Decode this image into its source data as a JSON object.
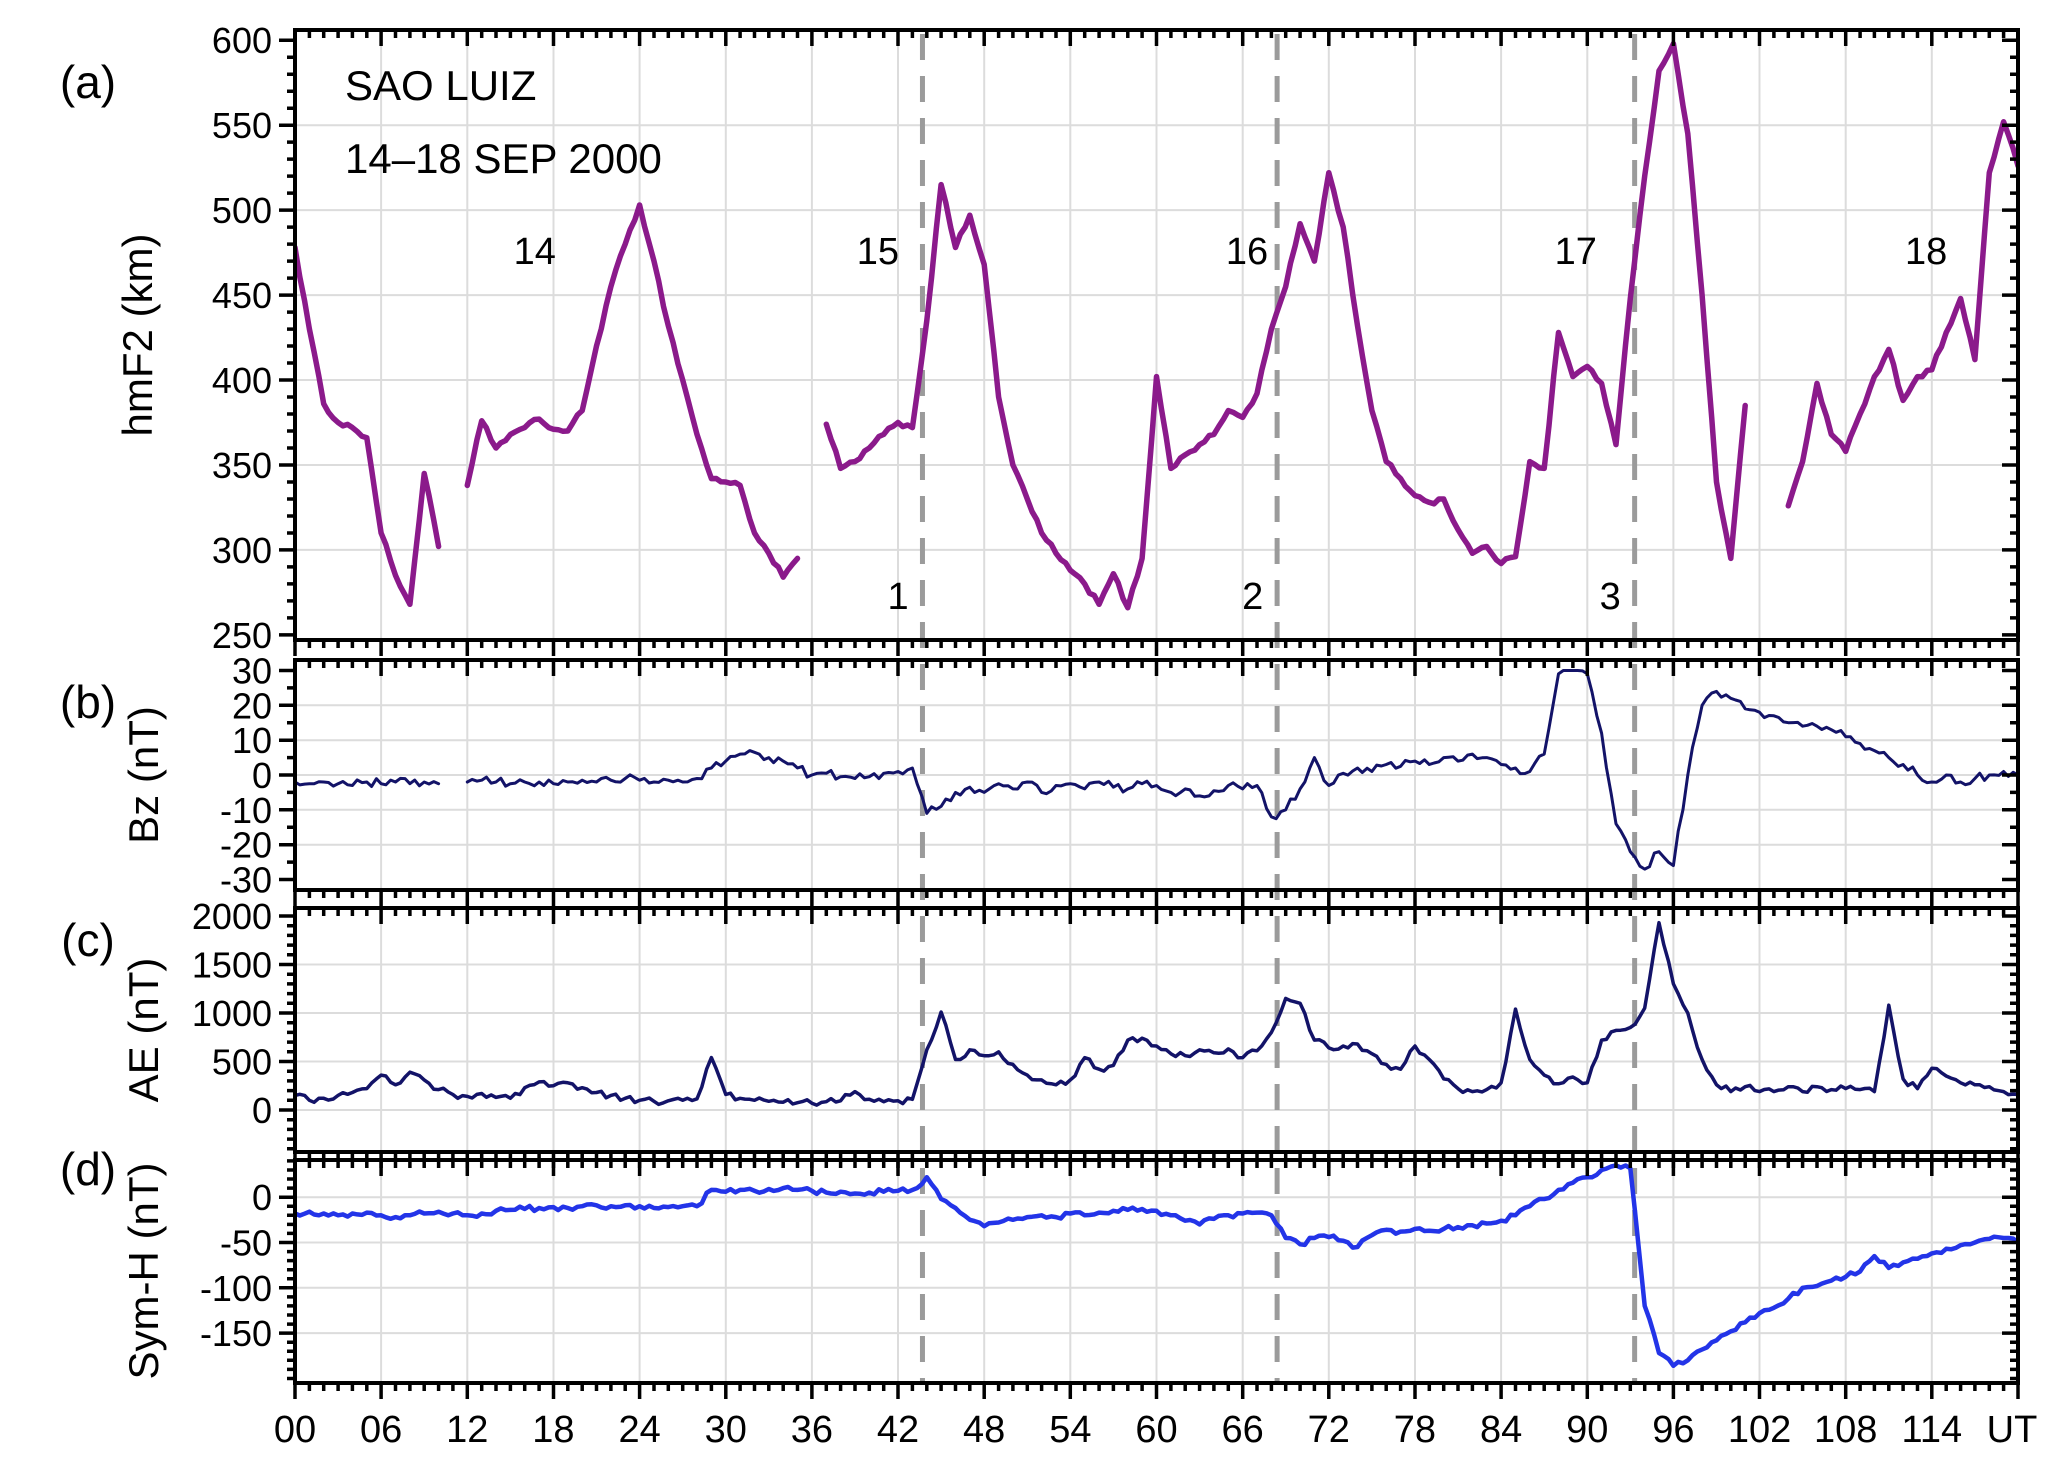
{
  "figure": {
    "header": {
      "station": "SAO LUIZ",
      "date_range": "14–18 SEP 2000"
    }
  },
  "x_axis": {
    "unit_label": "UT",
    "range": [
      0,
      120
    ],
    "major_step": 6,
    "minor_step": 1,
    "tick_labels": [
      "00",
      "06",
      "12",
      "18",
      "24",
      "30",
      "36",
      "42",
      "48",
      "54",
      "60",
      "66",
      "72",
      "78",
      "84",
      "90",
      "96",
      "102",
      "108",
      "114"
    ]
  },
  "annotations": {
    "event_lines": [
      {
        "label": "1",
        "hour": 43.7
      },
      {
        "label": "2",
        "hour": 68.4
      },
      {
        "label": "3",
        "hour": 93.3
      }
    ],
    "event_label_hours": [
      42.0,
      66.7,
      91.6
    ],
    "event_label_value": 273,
    "day_labels": [
      {
        "label": "14",
        "hour": 16.7
      },
      {
        "label": "15",
        "hour": 40.6
      },
      {
        "label": "16",
        "hour": 66.3
      },
      {
        "label": "17",
        "hour": 89.2
      },
      {
        "label": "18",
        "hour": 113.6
      }
    ],
    "day_label_value": 476
  },
  "chart_data": [
    {
      "panel": "a",
      "type": "line",
      "letter": "(a)",
      "ylabel": "hmF2 (km)",
      "color": "#8B1A8B",
      "line_width": 5.5,
      "noise": 1.5,
      "ylim": [
        247,
        606
      ],
      "yticks": [
        250,
        300,
        350,
        400,
        450,
        500,
        550,
        600
      ],
      "ytick_labels": [
        "250",
        "300",
        "350",
        "400",
        "450",
        "500",
        "550",
        "600"
      ],
      "y_minor_step": 10,
      "clip": [
        250,
        599.5
      ],
      "x_hours_step": 1,
      "values": [
        478,
        430,
        386,
        375,
        372,
        366,
        310,
        285,
        268,
        345,
        302,
        null,
        338,
        376,
        360,
        368,
        372,
        377,
        371,
        370,
        382,
        420,
        455,
        480,
        503,
        470,
        432,
        400,
        368,
        342,
        340,
        338,
        310,
        298,
        284,
        295,
        null,
        374,
        348,
        352,
        360,
        368,
        375,
        372,
        435,
        515,
        478,
        497,
        468,
        390,
        350,
        330,
        310,
        298,
        288,
        280,
        268,
        286,
        266,
        295,
        402,
        348,
        356,
        362,
        368,
        382,
        378,
        392,
        430,
        455,
        492,
        470,
        522,
        490,
        432,
        382,
        352,
        342,
        332,
        328,
        330,
        312,
        298,
        302,
        292,
        296,
        352,
        348,
        428,
        402,
        408,
        398,
        362,
        448,
        520,
        582,
        598,
        545,
        450,
        340,
        295,
        385,
        null,
        null,
        326,
        352,
        398,
        368,
        358,
        380,
        402,
        418,
        388,
        402,
        406,
        428,
        448,
        412,
        522,
        552,
        526
      ]
    },
    {
      "panel": "b",
      "type": "line",
      "letter": "(b)",
      "ylabel": "Bz (nT)",
      "color": "#131368",
      "line_width": 3,
      "noise": 1.3,
      "ylim": [
        -33,
        33
      ],
      "yticks": [
        -30,
        -20,
        -10,
        0,
        10,
        20,
        30
      ],
      "ytick_labels": [
        "-30",
        "-20",
        "-10",
        "0",
        "10",
        "20",
        "30"
      ],
      "y_minor_step": 5,
      "clip": [
        -29,
        30
      ],
      "x_hours_step": 1,
      "values": [
        -2,
        -2.5,
        -2,
        -2.5,
        -3,
        -2,
        -2.5,
        -2,
        -2.5,
        -2,
        -2.5,
        null,
        -2,
        -1.5,
        -2,
        -2.5,
        -2,
        -2,
        -2.5,
        -2,
        -1.5,
        -2,
        -1.5,
        -1,
        -1.5,
        -2,
        -1.5,
        -2,
        -1,
        2,
        4,
        6,
        6.5,
        5,
        4,
        2,
        0,
        0.5,
        -0.5,
        -1,
        -0.5,
        0.5,
        1,
        2,
        -11,
        -9,
        -5,
        -3.5,
        -5,
        -2.5,
        -4,
        -2,
        -5,
        -3,
        -2.5,
        -4,
        -2,
        -3.5,
        -4,
        -2.5,
        -3,
        -5,
        -4,
        -6,
        -4.5,
        -3,
        -4,
        -3,
        -12,
        -10,
        -4,
        5,
        -3,
        0.5,
        2,
        1,
        3,
        2.5,
        4,
        3,
        5,
        4,
        6,
        5,
        3,
        2,
        1,
        6,
        29,
        30,
        29,
        12,
        -14,
        -22,
        -27,
        -22,
        -26,
        0,
        20,
        24,
        22,
        19,
        18,
        17,
        15,
        14,
        14,
        13,
        11,
        9,
        7,
        5,
        3,
        0,
        -2,
        0,
        -2,
        -1,
        0,
        1,
        0
      ]
    },
    {
      "panel": "c",
      "type": "line",
      "letter": "(c)",
      "ylabel": "AE (nT)",
      "color": "#131368",
      "line_width": 3.5,
      "noise": 35,
      "ylim": [
        -433,
        2082
      ],
      "yticks": [
        0,
        500,
        1000,
        1500,
        2000
      ],
      "ytick_labels": [
        "0",
        "500",
        "1000",
        "1500",
        "2000"
      ],
      "y_minor_step": 100,
      "clip": [
        15,
        2050
      ],
      "x_hours_step": 1,
      "values": [
        150,
        100,
        120,
        150,
        180,
        220,
        360,
        260,
        390,
        310,
        210,
        160,
        140,
        170,
        130,
        120,
        230,
        290,
        250,
        280,
        230,
        180,
        150,
        120,
        100,
        90,
        95,
        100,
        115,
        540,
        160,
        120,
        100,
        90,
        80,
        75,
        70,
        85,
        95,
        190,
        110,
        85,
        95,
        110,
        620,
        1010,
        520,
        620,
        560,
        600,
        470,
        360,
        310,
        260,
        310,
        540,
        420,
        460,
        720,
        740,
        660,
        580,
        560,
        620,
        590,
        630,
        540,
        610,
        800,
        1150,
        1100,
        720,
        640,
        660,
        680,
        580,
        470,
        420,
        660,
        520,
        320,
        220,
        190,
        210,
        280,
        1040,
        520,
        360,
        270,
        340,
        280,
        720,
        820,
        850,
        1050,
        1930,
        1300,
        1000,
        520,
        260,
        190,
        240,
        190,
        190,
        240,
        190,
        240,
        210,
        220,
        210,
        190,
        1080,
        320,
        220,
        430,
        350,
        280,
        260,
        240,
        190,
        160
      ]
    },
    {
      "panel": "d",
      "type": "line",
      "letter": "(d)",
      "ylabel": "Sym-H (nT)",
      "color": "#2334E8",
      "line_width": 4.5,
      "noise": 3,
      "ylim": [
        -205,
        41
      ],
      "yticks": [
        -150,
        -100,
        -50,
        0
      ],
      "ytick_labels": [
        "-150",
        "-100",
        "-50",
        "0"
      ],
      "y_minor_step": 10,
      "clip": [
        -195,
        38
      ],
      "x_hours_step": 1,
      "values": [
        -18,
        -16,
        -18,
        -20,
        -18,
        -17,
        -20,
        -22,
        -20,
        -18,
        -16,
        -18,
        -20,
        -18,
        -15,
        -14,
        -13,
        -12,
        -11,
        -12,
        -10,
        -9,
        -10,
        -9,
        -10,
        -12,
        -11,
        -10,
        -10,
        8,
        6,
        8,
        7,
        9,
        10,
        8,
        7,
        5,
        6,
        4,
        5,
        6,
        7,
        8,
        22,
        -2,
        -12,
        -25,
        -32,
        -28,
        -25,
        -22,
        -20,
        -22,
        -18,
        -20,
        -17,
        -15,
        -14,
        -13,
        -15,
        -20,
        -26,
        -30,
        -24,
        -20,
        -18,
        -17,
        -20,
        -45,
        -52,
        -45,
        -44,
        -48,
        -55,
        -42,
        -36,
        -38,
        -35,
        -37,
        -35,
        -33,
        -31,
        -29,
        -26,
        -20,
        -10,
        -2,
        8,
        16,
        22,
        30,
        35,
        32,
        -120,
        -172,
        -186,
        -180,
        -168,
        -158,
        -148,
        -138,
        -128,
        -122,
        -112,
        -100,
        -98,
        -92,
        -88,
        -82,
        -65,
        -78,
        -72,
        -68,
        -62,
        -57,
        -53,
        -50,
        -46,
        -45,
        -50
      ]
    }
  ],
  "style_colors": {
    "grid": "#DCDCDC",
    "axis": "#000000",
    "event_dash": "#9B9B9B"
  }
}
